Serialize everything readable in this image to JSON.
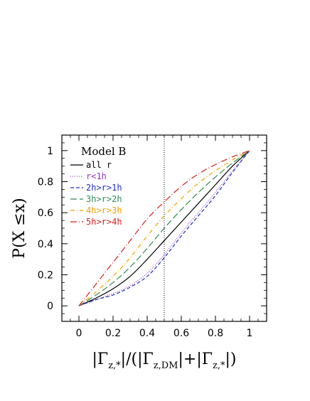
{
  "chart_data": {
    "type": "line",
    "title": "Model B",
    "ylabel": "P(X ≤x)",
    "xlabel_parts": {
      "bar_open": "|",
      "gamma1": "Γ",
      "sub1": "z,*",
      "mid": "|/(|",
      "gamma2": "Γ",
      "sub2": "z,DM",
      "mid2": "|+|",
      "gamma3": "Γ",
      "sub3": "z,*",
      "close": "|)"
    },
    "xlim": [
      -0.1,
      1.1
    ],
    "ylim": [
      -0.1,
      1.1
    ],
    "xticks": [
      "0",
      "0.2",
      "0.4",
      "0.6",
      "0.8",
      "1"
    ],
    "xtick_values": [
      0,
      0.2,
      0.4,
      0.6,
      0.8,
      1
    ],
    "yticks": [
      "0",
      "0.2",
      "0.4",
      "0.6",
      "0.8",
      "1"
    ],
    "ytick_values": [
      0,
      0.2,
      0.4,
      0.6,
      0.8,
      1
    ],
    "vline_x": 0.5,
    "grid": false,
    "legend_placement": "top-left",
    "x": [
      0,
      0.1,
      0.2,
      0.3,
      0.4,
      0.5,
      0.6,
      0.7,
      0.8,
      0.9,
      1.0
    ],
    "series": [
      {
        "name": "all r",
        "color": "#000000",
        "dash": "solid",
        "values": [
          0,
          0.05,
          0.11,
          0.19,
          0.3,
          0.42,
          0.54,
          0.66,
          0.78,
          0.9,
          1.0
        ]
      },
      {
        "name": "r<1h",
        "color": "#9b30c8",
        "dash": "dotted",
        "values": [
          0,
          0.04,
          0.08,
          0.13,
          0.21,
          0.33,
          0.47,
          0.6,
          0.73,
          0.87,
          1.0
        ]
      },
      {
        "name": "2h>r>1h",
        "color": "#1f2fbf",
        "dash": "dashed",
        "values": [
          0,
          0.04,
          0.07,
          0.12,
          0.19,
          0.31,
          0.45,
          0.58,
          0.71,
          0.86,
          1.0
        ]
      },
      {
        "name": "3h>r>2h",
        "color": "#2e8b57",
        "dash": "longdash",
        "values": [
          0,
          0.07,
          0.15,
          0.25,
          0.37,
          0.5,
          0.62,
          0.73,
          0.83,
          0.92,
          1.0
        ]
      },
      {
        "name": "4h>r>3h",
        "color": "#f0a000",
        "dash": "dashdot",
        "values": [
          0,
          0.09,
          0.19,
          0.31,
          0.45,
          0.58,
          0.69,
          0.79,
          0.87,
          0.94,
          1.0
        ]
      },
      {
        "name": "5h>r>4h",
        "color": "#d42020",
        "dash": "dashdotlong",
        "values": [
          0,
          0.14,
          0.28,
          0.42,
          0.56,
          0.67,
          0.77,
          0.85,
          0.91,
          0.96,
          1.0
        ]
      }
    ]
  }
}
